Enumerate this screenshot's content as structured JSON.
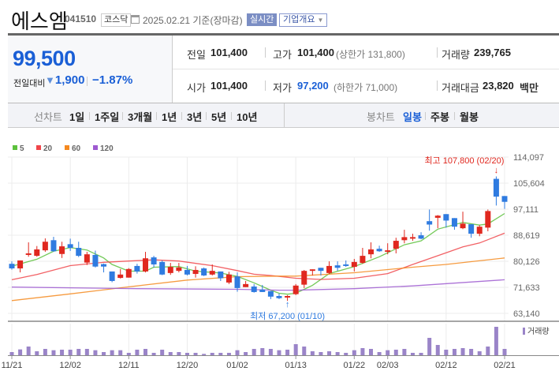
{
  "header": {
    "title": "에스엠",
    "code": "041510",
    "market": "코스닥",
    "date": "2025.02.21 기준(장마감)",
    "realtime_label": "실시간",
    "corp_label": "기업개요",
    "icon": "calendar-icon"
  },
  "summary": {
    "price": "99,500",
    "change_label": "전일대비",
    "change_value": "1,900",
    "change_pct": "−1.87%",
    "direction": "down",
    "prev_label": "전일",
    "prev": "101,400",
    "high_label": "고가",
    "high": "101,400",
    "upper_limit": "(상한가 131,800)",
    "volume_label": "거래량",
    "volume": "239,765",
    "open_label": "시가",
    "open": "101,400",
    "low_label": "저가",
    "low": "97,200",
    "lower_limit": "(하한가 71,000)",
    "amount_label": "거래대금",
    "amount": "23,820",
    "amount_unit": "백만"
  },
  "toolbar": {
    "line_label": "선차트",
    "line_periods": [
      "1일",
      "1주일",
      "3개월",
      "1년",
      "3년",
      "5년",
      "10년"
    ],
    "candle_label": "봉차트",
    "candle_periods": [
      "일봉",
      "주봉",
      "월봉"
    ],
    "active_candle": "일봉"
  },
  "colors": {
    "up": "#e0281f",
    "down": "#2f7be0",
    "accent": "#1a5fd6",
    "ma5": "#5cc13c",
    "ma20": "#f0454a",
    "ma60": "#f5891f",
    "ma120": "#9e5ad0",
    "volume": "#9a84c8"
  },
  "chart_data": {
    "type": "candlestick",
    "legend": [
      "5",
      "20",
      "60",
      "120"
    ],
    "y_ticks": [
      "114,097",
      "105,604",
      "97,111",
      "88,619",
      "80,126",
      "71,633",
      "63,140"
    ],
    "ylim": [
      63140,
      114097
    ],
    "x_ticks": [
      {
        "label": "11/21",
        "index": 0
      },
      {
        "label": "12/02",
        "index": 7
      },
      {
        "label": "12/11",
        "index": 14
      },
      {
        "label": "12/20",
        "index": 21
      },
      {
        "label": "01/02",
        "index": 27
      },
      {
        "label": "01/13",
        "index": 34
      },
      {
        "label": "01/22",
        "index": 41
      },
      {
        "label": "02/03",
        "index": 45
      },
      {
        "label": "02/12",
        "index": 52
      },
      {
        "label": "02/21",
        "index": 59
      }
    ],
    "ohlc": [
      [
        79300,
        80100,
        77400,
        77800
      ],
      [
        77800,
        80400,
        76500,
        80400
      ],
      [
        82200,
        86300,
        81600,
        82700
      ],
      [
        81900,
        85100,
        81600,
        84000
      ],
      [
        83700,
        87600,
        83200,
        86500
      ],
      [
        87000,
        88100,
        83200,
        83400
      ],
      [
        82500,
        86500,
        81200,
        85000
      ],
      [
        85700,
        87500,
        83500,
        84500
      ],
      [
        84500,
        86500,
        81500,
        81900
      ],
      [
        79700,
        83200,
        78900,
        82400
      ],
      [
        82200,
        83600,
        78100,
        78400
      ],
      [
        79200,
        79400,
        76500,
        78400
      ],
      [
        76800,
        76800,
        73300,
        73700
      ],
      [
        74700,
        77600,
        74500,
        75800
      ],
      [
        74800,
        77900,
        74800,
        77600
      ],
      [
        78600,
        79300,
        76100,
        76800
      ],
      [
        76800,
        83200,
        76500,
        81100
      ],
      [
        81400,
        81900,
        78100,
        79100
      ],
      [
        79900,
        80400,
        75600,
        75800
      ],
      [
        76300,
        79600,
        75700,
        78300
      ],
      [
        77000,
        79600,
        76500,
        78100
      ],
      [
        77300,
        78600,
        75500,
        75800
      ],
      [
        76000,
        78500,
        74800,
        77300
      ],
      [
        77800,
        78100,
        75300,
        75500
      ],
      [
        75800,
        79100,
        75500,
        77000
      ],
      [
        76800,
        76800,
        73700,
        74600
      ],
      [
        73200,
        76700,
        72700,
        75800
      ],
      [
        75200,
        76500,
        70200,
        71400
      ],
      [
        71700,
        73700,
        71700,
        72700
      ],
      [
        71900,
        72700,
        69900,
        70100
      ],
      [
        70900,
        72400,
        70100,
        70100
      ],
      [
        70400,
        70400,
        67800,
        68600
      ],
      [
        68800,
        69600,
        67800,
        68100
      ],
      [
        68300,
        69100,
        67200,
        68800
      ],
      [
        69400,
        72700,
        69100,
        72200
      ],
      [
        72500,
        77300,
        71400,
        77000
      ],
      [
        77000,
        77500,
        75500,
        77500
      ],
      [
        78000,
        78000,
        75500,
        77000
      ],
      [
        76300,
        80100,
        76000,
        78600
      ],
      [
        78800,
        80100,
        77000,
        78000
      ],
      [
        79100,
        80400,
        78300,
        78600
      ],
      [
        78300,
        80900,
        76800,
        79900
      ],
      [
        79600,
        84500,
        79300,
        81900
      ],
      [
        82400,
        86300,
        81100,
        84000
      ],
      [
        84200,
        85200,
        83200,
        83400
      ],
      [
        83200,
        86000,
        82400,
        83700
      ],
      [
        84200,
        87800,
        82700,
        86800
      ],
      [
        87000,
        90400,
        86000,
        88000
      ],
      [
        87500,
        89100,
        86800,
        88000
      ],
      [
        88600,
        89600,
        87300,
        87500
      ],
      [
        93200,
        97000,
        90100,
        92100
      ],
      [
        94300,
        95200,
        90900,
        95000
      ],
      [
        95500,
        95500,
        91100,
        93400
      ],
      [
        94200,
        94200,
        90400,
        91400
      ],
      [
        90900,
        96300,
        90600,
        92400
      ],
      [
        92200,
        92200,
        87800,
        89100
      ],
      [
        89100,
        91900,
        88300,
        91400
      ],
      [
        91100,
        97000,
        89900,
        96500
      ],
      [
        107000,
        107800,
        98300,
        101200
      ],
      [
        101400,
        101400,
        97200,
        99500
      ]
    ],
    "ma": {
      "5": [
        [
          0,
          78500
        ],
        [
          3,
          80800
        ],
        [
          5,
          83400
        ],
        [
          7,
          84600
        ],
        [
          9,
          83800
        ],
        [
          11,
          81200
        ],
        [
          12,
          79100
        ],
        [
          14,
          76900
        ],
        [
          16,
          76900
        ],
        [
          17,
          78200
        ],
        [
          20,
          78400
        ],
        [
          22,
          76900
        ],
        [
          25,
          76300
        ],
        [
          27,
          75200
        ],
        [
          29,
          73100
        ],
        [
          31,
          70700
        ],
        [
          32,
          69700
        ],
        [
          33,
          69400
        ],
        [
          34,
          69700
        ],
        [
          36,
          72300
        ],
        [
          38,
          76100
        ],
        [
          41,
          78400
        ],
        [
          44,
          81600
        ],
        [
          47,
          85500
        ],
        [
          49,
          86800
        ],
        [
          51,
          90600
        ],
        [
          54,
          92800
        ],
        [
          56,
          91900
        ],
        [
          57,
          92300
        ],
        [
          59,
          95700
        ]
      ],
      "20": [
        [
          0,
          74100
        ],
        [
          3,
          75800
        ],
        [
          7,
          78700
        ],
        [
          11,
          79800
        ],
        [
          14,
          80200
        ],
        [
          17,
          80600
        ],
        [
          20,
          80200
        ],
        [
          24,
          78700
        ],
        [
          27,
          77100
        ],
        [
          29,
          75900
        ],
        [
          31,
          75500
        ],
        [
          34,
          74600
        ],
        [
          37,
          74200
        ],
        [
          41,
          74600
        ],
        [
          45,
          76100
        ],
        [
          48,
          79100
        ],
        [
          52,
          82900
        ],
        [
          54,
          84800
        ],
        [
          56,
          86100
        ],
        [
          59,
          89300
        ]
      ],
      "60": [
        [
          0,
          67300
        ],
        [
          7,
          69500
        ],
        [
          14,
          71800
        ],
        [
          21,
          74000
        ],
        [
          27,
          75100
        ],
        [
          32,
          75300
        ],
        [
          34,
          75300
        ],
        [
          41,
          76400
        ],
        [
          48,
          78200
        ],
        [
          52,
          79100
        ],
        [
          59,
          81200
        ]
      ],
      "120": [
        [
          0,
          71700
        ],
        [
          15,
          71200
        ],
        [
          27,
          71000
        ],
        [
          32,
          70700
        ],
        [
          34,
          70700
        ],
        [
          41,
          71200
        ],
        [
          48,
          72100
        ],
        [
          59,
          74100
        ]
      ]
    },
    "annotations": {
      "high": "최고 107,800 (02/20)",
      "low": "최저 67,200 (01/10)",
      "high_index": 58,
      "low_index": 33
    },
    "volume_label": "거래량",
    "volume": [
      120000,
      220000,
      330000,
      150000,
      240000,
      190000,
      210000,
      210000,
      240000,
      240000,
      190000,
      120000,
      190000,
      190000,
      90000,
      210000,
      240000,
      90000,
      210000,
      120000,
      120000,
      90000,
      90000,
      50000,
      90000,
      90000,
      90000,
      190000,
      120000,
      240000,
      270000,
      240000,
      190000,
      210000,
      420000,
      330000,
      150000,
      120000,
      150000,
      120000,
      90000,
      190000,
      270000,
      240000,
      120000,
      190000,
      210000,
      240000,
      90000,
      90000,
      660000,
      390000,
      210000,
      240000,
      270000,
      240000,
      150000,
      330000,
      1080000,
      239765
    ]
  }
}
